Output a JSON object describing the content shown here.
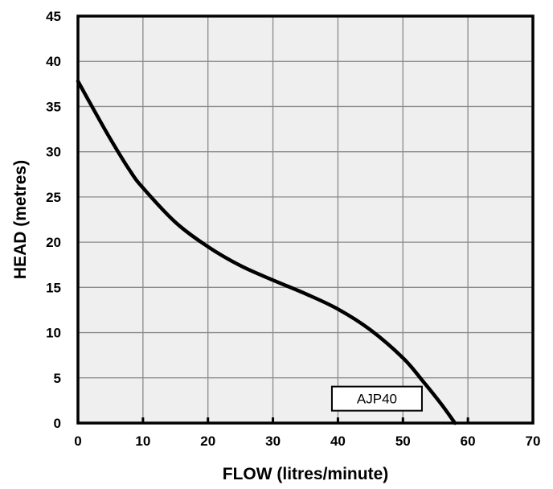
{
  "chart_data": {
    "type": "line",
    "xlabel": "FLOW (litres/minute)",
    "ylabel": "HEAD (metres)",
    "xlim": [
      0,
      70
    ],
    "ylim": [
      0,
      45
    ],
    "xticks": [
      0,
      10,
      20,
      30,
      40,
      50,
      60,
      70
    ],
    "yticks": [
      0,
      5,
      10,
      15,
      20,
      25,
      30,
      35,
      40,
      45
    ],
    "grid": true,
    "series": [
      {
        "name": "AJP40",
        "color": "#000000",
        "x": [
          0,
          2,
          5,
          8,
          10,
          15,
          20,
          25,
          30,
          35,
          40,
          45,
          50,
          53,
          56,
          58
        ],
        "y": [
          37.8,
          35.2,
          31.4,
          27.9,
          26.0,
          22.2,
          19.5,
          17.4,
          15.8,
          14.3,
          12.6,
          10.3,
          7.2,
          4.7,
          2.0,
          0
        ]
      }
    ],
    "annotations": [
      {
        "text": "AJP40",
        "x": 46,
        "y": 2.7
      }
    ]
  }
}
